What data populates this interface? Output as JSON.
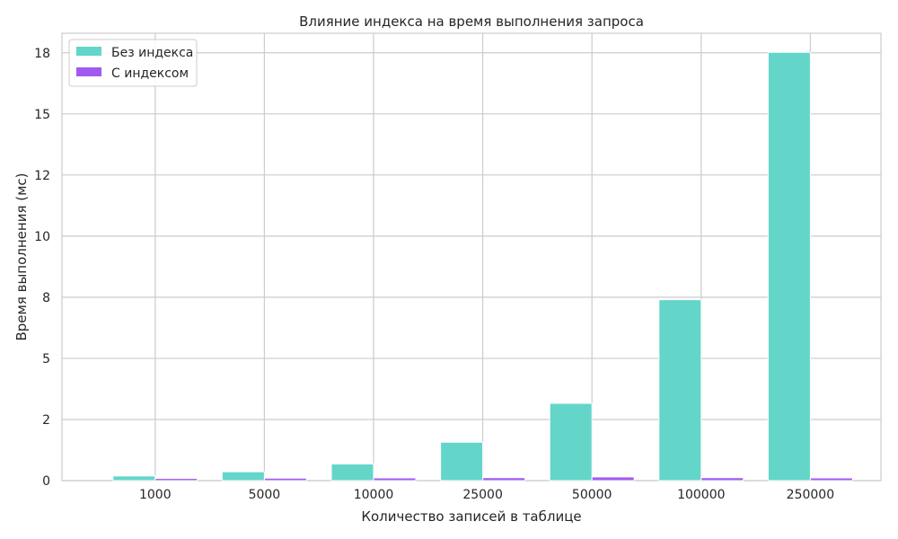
{
  "chart_data": {
    "type": "bar",
    "title": "Влияние индекса на время выполнения запроса",
    "xlabel": "Количество записей в таблице",
    "ylabel": "Время выполнения (мс)",
    "categories": [
      "1000",
      "5000",
      "10000",
      "25000",
      "50000",
      "100000",
      "250000"
    ],
    "series": [
      {
        "name": "Без индекса",
        "color": "#64d5c9",
        "values": [
          0.19,
          0.36,
          0.68,
          1.57,
          3.16,
          7.4,
          17.52
        ]
      },
      {
        "name": "С индексом",
        "color": "#a259f0",
        "values": [
          0.09,
          0.1,
          0.11,
          0.12,
          0.15,
          0.12,
          0.11
        ]
      }
    ],
    "ylim": [
      0,
      18.3
    ],
    "yticks": [
      0,
      2.5,
      5,
      7.5,
      10,
      12.5,
      15,
      17.5
    ],
    "ytick_labels": [
      "0",
      "2",
      "5",
      "8",
      "10",
      "12",
      "15",
      "18"
    ],
    "grid": true,
    "legend_position": "top-left"
  }
}
